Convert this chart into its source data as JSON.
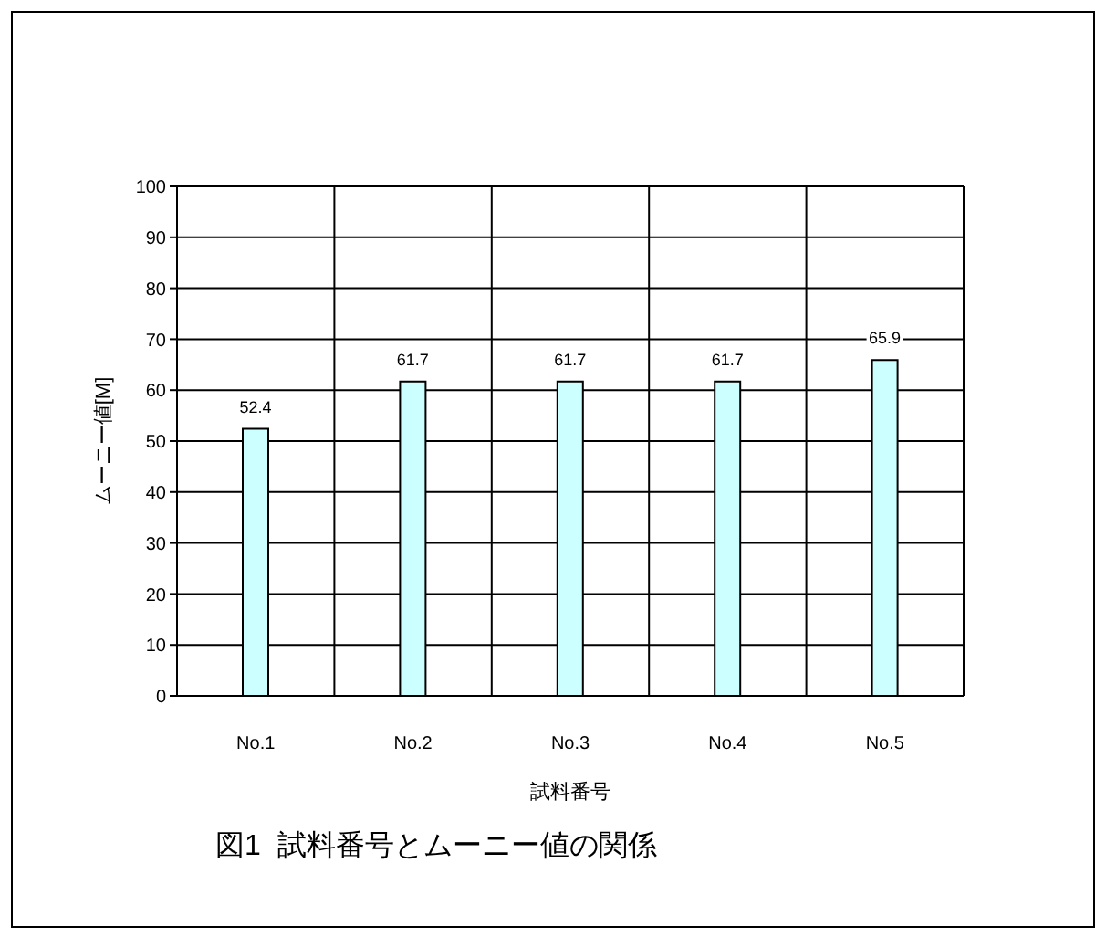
{
  "chart_data": {
    "type": "bar",
    "title": "図1  試料番号とムーニー値の関係",
    "xlabel": "試料番号",
    "ylabel": "ムーニー値[M]",
    "categories": [
      "No.1",
      "No.2",
      "No.3",
      "No.4",
      "No.5"
    ],
    "values": [
      52.4,
      61.7,
      61.7,
      61.7,
      65.9
    ],
    "color": "#ccffff",
    "ylim": [
      0,
      100
    ],
    "yticks": [
      0,
      10,
      20,
      30,
      40,
      50,
      60,
      70,
      80,
      90,
      100
    ],
    "grid": true,
    "data_labels": true
  }
}
